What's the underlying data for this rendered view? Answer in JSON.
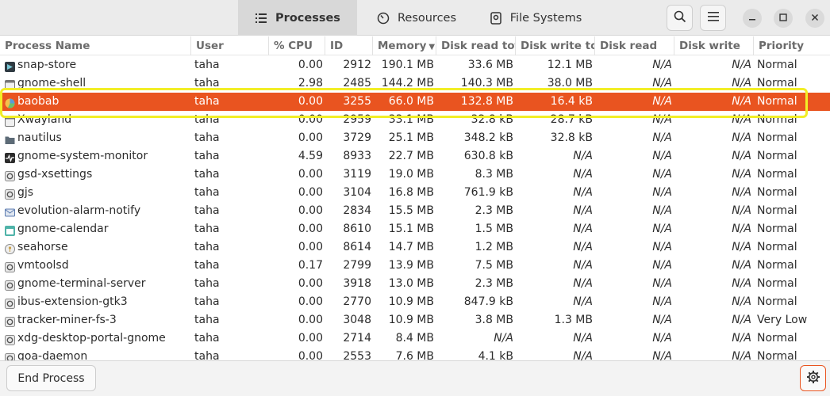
{
  "tabs": [
    {
      "label": "Processes",
      "icon": "list-icon"
    },
    {
      "label": "Resources",
      "icon": "gauge-icon"
    },
    {
      "label": "File Systems",
      "icon": "disk-icon"
    }
  ],
  "columns": [
    "Process Name",
    "User",
    "% CPU",
    "ID",
    "Memory",
    "Disk read tota",
    "Disk write tot",
    "Disk read",
    "Disk write",
    "Priority"
  ],
  "sort_column": "Memory",
  "accent_color": "#e95420",
  "highlight_color": "#f2ee27",
  "processes": [
    {
      "name": "snap-store",
      "icon": "snap-store-icon",
      "user": "taha",
      "cpu": "0.00",
      "id": "2912",
      "memory": "190.1 MB",
      "disk_read_total": "33.6 MB",
      "disk_write_total": "12.1 MB",
      "disk_read": "N/A",
      "disk_write": "N/A",
      "priority": "Normal",
      "selected": false
    },
    {
      "name": "gnome-shell",
      "icon": "window-icon",
      "user": "taha",
      "cpu": "2.98",
      "id": "2485",
      "memory": "144.2 MB",
      "disk_read_total": "140.3 MB",
      "disk_write_total": "38.0 MB",
      "disk_read": "N/A",
      "disk_write": "N/A",
      "priority": "Normal",
      "selected": false
    },
    {
      "name": "baobab",
      "icon": "pie-icon",
      "user": "taha",
      "cpu": "0.00",
      "id": "3255",
      "memory": "66.0 MB",
      "disk_read_total": "132.8 MB",
      "disk_write_total": "16.4 kB",
      "disk_read": "N/A",
      "disk_write": "N/A",
      "priority": "Normal",
      "selected": true
    },
    {
      "name": "Xwayland",
      "icon": "window-icon",
      "user": "taha",
      "cpu": "0.00",
      "id": "2959",
      "memory": "33.1 MB",
      "disk_read_total": "32.8 kB",
      "disk_write_total": "28.7 kB",
      "disk_read": "N/A",
      "disk_write": "N/A",
      "priority": "Normal",
      "selected": false
    },
    {
      "name": "nautilus",
      "icon": "folder-icon",
      "user": "taha",
      "cpu": "0.00",
      "id": "3729",
      "memory": "25.1 MB",
      "disk_read_total": "348.2 kB",
      "disk_write_total": "32.8 kB",
      "disk_read": "N/A",
      "disk_write": "N/A",
      "priority": "Normal",
      "selected": false
    },
    {
      "name": "gnome-system-monitor",
      "icon": "monitor-icon",
      "user": "taha",
      "cpu": "4.59",
      "id": "8933",
      "memory": "22.7 MB",
      "disk_read_total": "630.8 kB",
      "disk_write_total": "N/A",
      "disk_read": "N/A",
      "disk_write": "N/A",
      "priority": "Normal",
      "selected": false
    },
    {
      "name": "gsd-xsettings",
      "icon": "gear-icon",
      "user": "taha",
      "cpu": "0.00",
      "id": "3119",
      "memory": "19.0 MB",
      "disk_read_total": "8.3 MB",
      "disk_write_total": "N/A",
      "disk_read": "N/A",
      "disk_write": "N/A",
      "priority": "Normal",
      "selected": false
    },
    {
      "name": "gjs",
      "icon": "gear-icon",
      "user": "taha",
      "cpu": "0.00",
      "id": "3104",
      "memory": "16.8 MB",
      "disk_read_total": "761.9 kB",
      "disk_write_total": "N/A",
      "disk_read": "N/A",
      "disk_write": "N/A",
      "priority": "Normal",
      "selected": false
    },
    {
      "name": "evolution-alarm-notify",
      "icon": "mail-icon",
      "user": "taha",
      "cpu": "0.00",
      "id": "2834",
      "memory": "15.5 MB",
      "disk_read_total": "2.3 MB",
      "disk_write_total": "N/A",
      "disk_read": "N/A",
      "disk_write": "N/A",
      "priority": "Normal",
      "selected": false
    },
    {
      "name": "gnome-calendar",
      "icon": "calendar-icon",
      "user": "taha",
      "cpu": "0.00",
      "id": "8610",
      "memory": "15.1 MB",
      "disk_read_total": "1.5 MB",
      "disk_write_total": "N/A",
      "disk_read": "N/A",
      "disk_write": "N/A",
      "priority": "Normal",
      "selected": false
    },
    {
      "name": "seahorse",
      "icon": "key-icon",
      "user": "taha",
      "cpu": "0.00",
      "id": "8614",
      "memory": "14.7 MB",
      "disk_read_total": "1.2 MB",
      "disk_write_total": "N/A",
      "disk_read": "N/A",
      "disk_write": "N/A",
      "priority": "Normal",
      "selected": false
    },
    {
      "name": "vmtoolsd",
      "icon": "gear-icon",
      "user": "taha",
      "cpu": "0.17",
      "id": "2799",
      "memory": "13.9 MB",
      "disk_read_total": "7.5 MB",
      "disk_write_total": "N/A",
      "disk_read": "N/A",
      "disk_write": "N/A",
      "priority": "Normal",
      "selected": false
    },
    {
      "name": "gnome-terminal-server",
      "icon": "gear-icon",
      "user": "taha",
      "cpu": "0.00",
      "id": "3918",
      "memory": "13.0 MB",
      "disk_read_total": "2.3 MB",
      "disk_write_total": "N/A",
      "disk_read": "N/A",
      "disk_write": "N/A",
      "priority": "Normal",
      "selected": false
    },
    {
      "name": "ibus-extension-gtk3",
      "icon": "gear-icon",
      "user": "taha",
      "cpu": "0.00",
      "id": "2770",
      "memory": "10.9 MB",
      "disk_read_total": "847.9 kB",
      "disk_write_total": "N/A",
      "disk_read": "N/A",
      "disk_write": "N/A",
      "priority": "Normal",
      "selected": false
    },
    {
      "name": "tracker-miner-fs-3",
      "icon": "gear-icon",
      "user": "taha",
      "cpu": "0.00",
      "id": "3048",
      "memory": "10.9 MB",
      "disk_read_total": "3.8 MB",
      "disk_write_total": "1.3 MB",
      "disk_read": "N/A",
      "disk_write": "N/A",
      "priority": "Very Low",
      "selected": false
    },
    {
      "name": "xdg-desktop-portal-gnome",
      "icon": "gear-icon",
      "user": "taha",
      "cpu": "0.00",
      "id": "2714",
      "memory": "8.4 MB",
      "disk_read_total": "N/A",
      "disk_write_total": "N/A",
      "disk_read": "N/A",
      "disk_write": "N/A",
      "priority": "Normal",
      "selected": false
    },
    {
      "name": "goa-daemon",
      "icon": "gear-icon",
      "user": "taha",
      "cpu": "0.00",
      "id": "2553",
      "memory": "7.6 MB",
      "disk_read_total": "4.1 kB",
      "disk_write_total": "N/A",
      "disk_read": "N/A",
      "disk_write": "N/A",
      "priority": "Normal",
      "selected": false
    }
  ],
  "footer": {
    "end_process_label": "End Process",
    "settings_icon": "gear-icon"
  }
}
